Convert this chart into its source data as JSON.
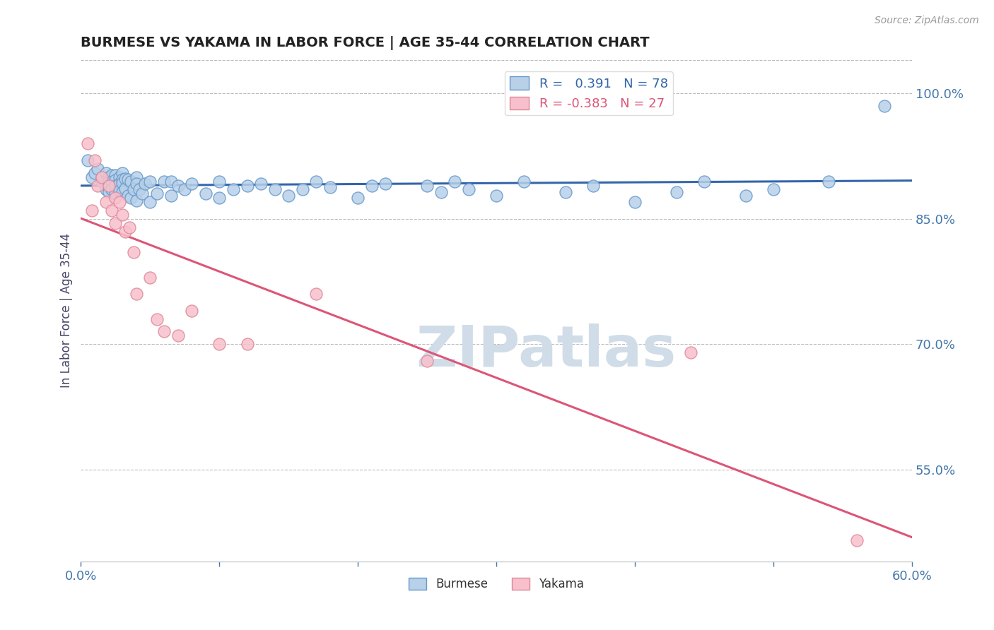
{
  "title": "BURMESE VS YAKAMA IN LABOR FORCE | AGE 35-44 CORRELATION CHART",
  "source_text": "Source: ZipAtlas.com",
  "ylabel": "In Labor Force | Age 35-44",
  "xlim": [
    0.0,
    0.6
  ],
  "ylim": [
    0.44,
    1.04
  ],
  "yticks": [
    0.55,
    0.7,
    0.85,
    1.0
  ],
  "xticks": [
    0.0,
    0.1,
    0.2,
    0.3,
    0.4,
    0.5,
    0.6
  ],
  "burmese_R": 0.391,
  "burmese_N": 78,
  "yakama_R": -0.383,
  "yakama_N": 27,
  "blue_color": "#b8d0e8",
  "blue_edge_color": "#6699cc",
  "blue_line_color": "#3366aa",
  "pink_color": "#f8c0cc",
  "pink_edge_color": "#dd8899",
  "pink_line_color": "#dd5577",
  "background_color": "#ffffff",
  "grid_color": "#bbbbbb",
  "title_color": "#222222",
  "axis_label_color": "#444466",
  "tick_color": "#4477aa",
  "watermark_color": "#d0dde8",
  "legend_text_blue": "#3366aa",
  "legend_text_pink": "#dd5577",
  "burmese_x": [
    0.005,
    0.008,
    0.01,
    0.012,
    0.015,
    0.015,
    0.018,
    0.018,
    0.02,
    0.02,
    0.02,
    0.02,
    0.02,
    0.022,
    0.022,
    0.022,
    0.025,
    0.025,
    0.025,
    0.025,
    0.028,
    0.028,
    0.028,
    0.03,
    0.03,
    0.03,
    0.03,
    0.032,
    0.032,
    0.034,
    0.034,
    0.036,
    0.036,
    0.038,
    0.04,
    0.04,
    0.04,
    0.042,
    0.044,
    0.046,
    0.05,
    0.05,
    0.055,
    0.06,
    0.065,
    0.065,
    0.07,
    0.075,
    0.08,
    0.09,
    0.1,
    0.1,
    0.11,
    0.12,
    0.13,
    0.14,
    0.15,
    0.16,
    0.17,
    0.18,
    0.2,
    0.21,
    0.22,
    0.25,
    0.26,
    0.27,
    0.28,
    0.3,
    0.32,
    0.35,
    0.37,
    0.4,
    0.43,
    0.45,
    0.48,
    0.5,
    0.54,
    0.58
  ],
  "burmese_y": [
    0.92,
    0.9,
    0.905,
    0.91,
    0.895,
    0.9,
    0.905,
    0.885,
    0.9,
    0.895,
    0.895,
    0.888,
    0.882,
    0.902,
    0.895,
    0.885,
    0.902,
    0.896,
    0.89,
    0.88,
    0.9,
    0.892,
    0.884,
    0.905,
    0.897,
    0.893,
    0.882,
    0.898,
    0.886,
    0.897,
    0.878,
    0.895,
    0.875,
    0.885,
    0.9,
    0.892,
    0.872,
    0.885,
    0.88,
    0.892,
    0.895,
    0.87,
    0.88,
    0.895,
    0.895,
    0.878,
    0.89,
    0.885,
    0.892,
    0.88,
    0.895,
    0.875,
    0.885,
    0.89,
    0.892,
    0.885,
    0.878,
    0.885,
    0.895,
    0.888,
    0.875,
    0.89,
    0.892,
    0.89,
    0.882,
    0.895,
    0.885,
    0.878,
    0.895,
    0.882,
    0.89,
    0.87,
    0.882,
    0.895,
    0.878,
    0.885,
    0.895,
    0.985
  ],
  "yakama_x": [
    0.005,
    0.008,
    0.01,
    0.012,
    0.015,
    0.018,
    0.02,
    0.022,
    0.025,
    0.025,
    0.028,
    0.03,
    0.032,
    0.035,
    0.038,
    0.04,
    0.05,
    0.055,
    0.06,
    0.07,
    0.08,
    0.1,
    0.12,
    0.17,
    0.25,
    0.44,
    0.56
  ],
  "yakama_y": [
    0.94,
    0.86,
    0.92,
    0.89,
    0.9,
    0.87,
    0.89,
    0.86,
    0.875,
    0.845,
    0.87,
    0.855,
    0.835,
    0.84,
    0.81,
    0.76,
    0.78,
    0.73,
    0.715,
    0.71,
    0.74,
    0.7,
    0.7,
    0.76,
    0.68,
    0.69,
    0.465
  ]
}
